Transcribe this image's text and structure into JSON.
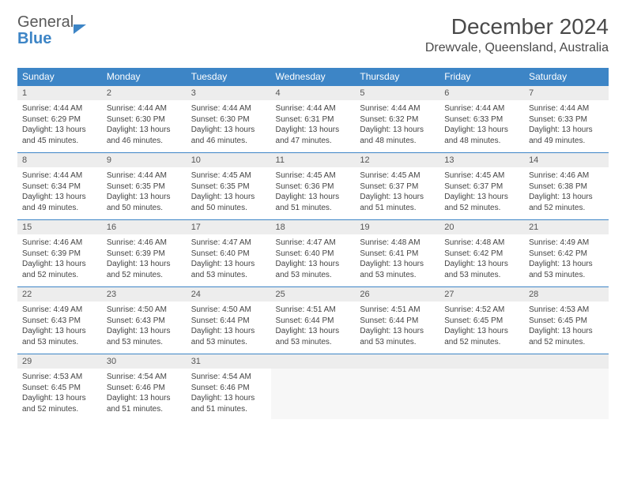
{
  "logo": {
    "line1": "General",
    "line2": "Blue"
  },
  "title": {
    "month": "December 2024",
    "location": "Drewvale, Queensland, Australia"
  },
  "calendar": {
    "type": "table",
    "colors": {
      "header_bg": "#3d85c6",
      "header_text": "#ffffff",
      "daynum_bg": "#ededed",
      "row_divider": "#3d85c6",
      "body_text": "#444444",
      "background": "#ffffff"
    },
    "fonts": {
      "month_size_pt": 21,
      "location_size_pt": 12,
      "header_size_pt": 9,
      "daynum_size_pt": 8.5,
      "body_size_pt": 7.5
    },
    "columns": [
      "Sunday",
      "Monday",
      "Tuesday",
      "Wednesday",
      "Thursday",
      "Friday",
      "Saturday"
    ],
    "days": [
      {
        "n": "1",
        "sunrise": "4:44 AM",
        "sunset": "6:29 PM",
        "daylight": "13 hours and 45 minutes."
      },
      {
        "n": "2",
        "sunrise": "4:44 AM",
        "sunset": "6:30 PM",
        "daylight": "13 hours and 46 minutes."
      },
      {
        "n": "3",
        "sunrise": "4:44 AM",
        "sunset": "6:30 PM",
        "daylight": "13 hours and 46 minutes."
      },
      {
        "n": "4",
        "sunrise": "4:44 AM",
        "sunset": "6:31 PM",
        "daylight": "13 hours and 47 minutes."
      },
      {
        "n": "5",
        "sunrise": "4:44 AM",
        "sunset": "6:32 PM",
        "daylight": "13 hours and 48 minutes."
      },
      {
        "n": "6",
        "sunrise": "4:44 AM",
        "sunset": "6:33 PM",
        "daylight": "13 hours and 48 minutes."
      },
      {
        "n": "7",
        "sunrise": "4:44 AM",
        "sunset": "6:33 PM",
        "daylight": "13 hours and 49 minutes."
      },
      {
        "n": "8",
        "sunrise": "4:44 AM",
        "sunset": "6:34 PM",
        "daylight": "13 hours and 49 minutes."
      },
      {
        "n": "9",
        "sunrise": "4:44 AM",
        "sunset": "6:35 PM",
        "daylight": "13 hours and 50 minutes."
      },
      {
        "n": "10",
        "sunrise": "4:45 AM",
        "sunset": "6:35 PM",
        "daylight": "13 hours and 50 minutes."
      },
      {
        "n": "11",
        "sunrise": "4:45 AM",
        "sunset": "6:36 PM",
        "daylight": "13 hours and 51 minutes."
      },
      {
        "n": "12",
        "sunrise": "4:45 AM",
        "sunset": "6:37 PM",
        "daylight": "13 hours and 51 minutes."
      },
      {
        "n": "13",
        "sunrise": "4:45 AM",
        "sunset": "6:37 PM",
        "daylight": "13 hours and 52 minutes."
      },
      {
        "n": "14",
        "sunrise": "4:46 AM",
        "sunset": "6:38 PM",
        "daylight": "13 hours and 52 minutes."
      },
      {
        "n": "15",
        "sunrise": "4:46 AM",
        "sunset": "6:39 PM",
        "daylight": "13 hours and 52 minutes."
      },
      {
        "n": "16",
        "sunrise": "4:46 AM",
        "sunset": "6:39 PM",
        "daylight": "13 hours and 52 minutes."
      },
      {
        "n": "17",
        "sunrise": "4:47 AM",
        "sunset": "6:40 PM",
        "daylight": "13 hours and 53 minutes."
      },
      {
        "n": "18",
        "sunrise": "4:47 AM",
        "sunset": "6:40 PM",
        "daylight": "13 hours and 53 minutes."
      },
      {
        "n": "19",
        "sunrise": "4:48 AM",
        "sunset": "6:41 PM",
        "daylight": "13 hours and 53 minutes."
      },
      {
        "n": "20",
        "sunrise": "4:48 AM",
        "sunset": "6:42 PM",
        "daylight": "13 hours and 53 minutes."
      },
      {
        "n": "21",
        "sunrise": "4:49 AM",
        "sunset": "6:42 PM",
        "daylight": "13 hours and 53 minutes."
      },
      {
        "n": "22",
        "sunrise": "4:49 AM",
        "sunset": "6:43 PM",
        "daylight": "13 hours and 53 minutes."
      },
      {
        "n": "23",
        "sunrise": "4:50 AM",
        "sunset": "6:43 PM",
        "daylight": "13 hours and 53 minutes."
      },
      {
        "n": "24",
        "sunrise": "4:50 AM",
        "sunset": "6:44 PM",
        "daylight": "13 hours and 53 minutes."
      },
      {
        "n": "25",
        "sunrise": "4:51 AM",
        "sunset": "6:44 PM",
        "daylight": "13 hours and 53 minutes."
      },
      {
        "n": "26",
        "sunrise": "4:51 AM",
        "sunset": "6:44 PM",
        "daylight": "13 hours and 53 minutes."
      },
      {
        "n": "27",
        "sunrise": "4:52 AM",
        "sunset": "6:45 PM",
        "daylight": "13 hours and 52 minutes."
      },
      {
        "n": "28",
        "sunrise": "4:53 AM",
        "sunset": "6:45 PM",
        "daylight": "13 hours and 52 minutes."
      },
      {
        "n": "29",
        "sunrise": "4:53 AM",
        "sunset": "6:45 PM",
        "daylight": "13 hours and 52 minutes."
      },
      {
        "n": "30",
        "sunrise": "4:54 AM",
        "sunset": "6:46 PM",
        "daylight": "13 hours and 51 minutes."
      },
      {
        "n": "31",
        "sunrise": "4:54 AM",
        "sunset": "6:46 PM",
        "daylight": "13 hours and 51 minutes."
      }
    ],
    "labels": {
      "sunrise": "Sunrise:",
      "sunset": "Sunset:",
      "daylight": "Daylight:"
    },
    "start_weekday_index": 0,
    "trailing_empty": 4
  }
}
